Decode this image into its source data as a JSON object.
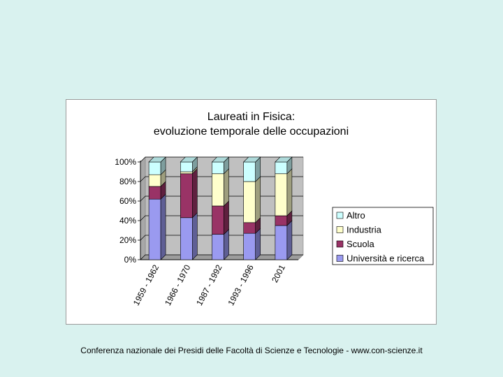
{
  "chart_data": {
    "type": "bar",
    "stacked": true,
    "title": [
      "Laureati in Fisica:",
      "evoluzione temporale delle occupazioni"
    ],
    "categories": [
      "1959 - 1962",
      "1966 - 1970",
      "1987 - 1992",
      "1993 - 1996",
      "2001"
    ],
    "series": [
      {
        "name": "Università e ricerca",
        "color": "#9a9af0",
        "values": [
          62,
          43,
          26,
          27,
          35
        ]
      },
      {
        "name": "Scuola",
        "color": "#993366",
        "values": [
          13,
          45,
          29,
          11,
          10
        ]
      },
      {
        "name": "Industria",
        "color": "#ffffcc",
        "values": [
          12,
          2,
          33,
          42,
          43
        ]
      },
      {
        "name": "Altro",
        "color": "#ccffff",
        "values": [
          13,
          10,
          12,
          20,
          12
        ]
      }
    ],
    "y_ticks": [
      "0%",
      "20%",
      "40%",
      "60%",
      "80%",
      "100%"
    ],
    "ylim": [
      0,
      100
    ],
    "grid": true,
    "legend": "right"
  },
  "footer": "Conferenza nazionale dei Presidi delle Facoltà di Scienze e Tecnologie  -   www.con-scienze.it"
}
